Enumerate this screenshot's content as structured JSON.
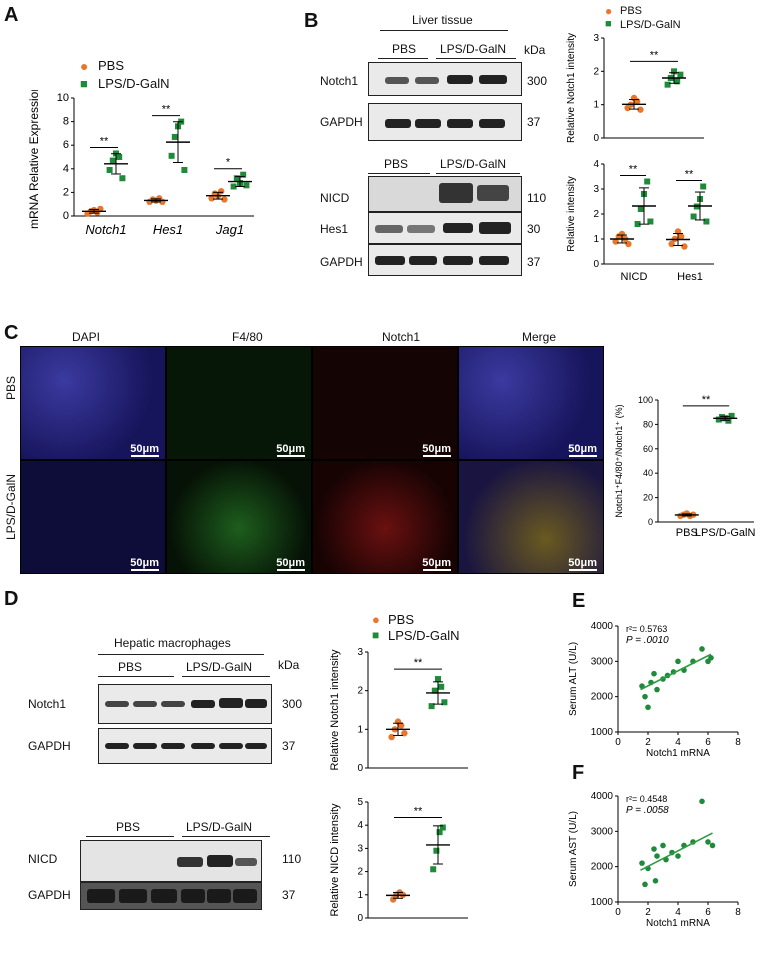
{
  "panels": {
    "a": "A",
    "b": "B",
    "c": "C",
    "d": "D",
    "e": "E",
    "f": "F"
  },
  "colors": {
    "pbs": "#e8772e",
    "lps": "#1f8a3a",
    "line": "#2f9a44"
  },
  "legend": {
    "pbs": "PBS",
    "lps": "LPS/D-GalN"
  },
  "sig": {
    "two": "**",
    "one": "*"
  },
  "blot_b": {
    "tissue": "Liver tissue",
    "kda": "kDa",
    "groups": [
      "PBS",
      "LPS/D-GalN"
    ],
    "rows_top": [
      {
        "name": "Notch1",
        "kda": "300"
      },
      {
        "name": "GAPDH",
        "kda": "37"
      }
    ],
    "rows_bottom": [
      {
        "name": "NICD",
        "kda": "110"
      },
      {
        "name": "Hes1",
        "kda": "30"
      },
      {
        "name": "GAPDH",
        "kda": "37"
      }
    ]
  },
  "micro": {
    "cols": [
      "DAPI",
      "F4/80",
      "Notch1",
      "Merge"
    ],
    "rows": [
      "PBS",
      "LPS/D-GalN"
    ],
    "scale": "50μm"
  },
  "blot_d": {
    "title": "Hepatic macrophages",
    "kda": "kDa",
    "groups": [
      "PBS",
      "LPS/D-GalN"
    ],
    "rows_top": [
      {
        "name": "Notch1",
        "kda": "300"
      },
      {
        "name": "GAPDH",
        "kda": "37"
      }
    ],
    "rows_bottom": [
      {
        "name": "NICD",
        "kda": "110"
      },
      {
        "name": "GAPDH",
        "kda": "37"
      }
    ]
  },
  "chart_data": [
    {
      "id": "A",
      "type": "scatter",
      "ylabel": "mRNA Relative Expression",
      "ylim": [
        0,
        10
      ],
      "yticks": [
        0,
        2,
        4,
        6,
        8,
        10
      ],
      "categories": [
        "Notch1",
        "Hes1",
        "Jag1"
      ],
      "series": [
        {
          "name": "PBS",
          "values": [
            [
              0.2,
              0.4,
              0.5,
              0.3,
              0.6
            ],
            [
              1.2,
              1.4,
              1.3,
              1.5,
              1.2
            ],
            [
              1.5,
              1.9,
              1.7,
              2.1,
              1.4
            ]
          ]
        },
        {
          "name": "LPS/D-GalN",
          "values": [
            [
              3.9,
              4.7,
              5.3,
              5.0,
              3.2
            ],
            [
              5.1,
              6.7,
              7.6,
              8.0,
              3.9
            ],
            [
              2.5,
              3.2,
              2.8,
              3.5,
              2.6
            ]
          ]
        }
      ],
      "sig": [
        "**",
        "**",
        "*"
      ]
    },
    {
      "id": "B1",
      "type": "scatter",
      "ylabel": "Relative Notch1 intensity",
      "ylim": [
        0,
        3
      ],
      "yticks": [
        0,
        1,
        2,
        3
      ],
      "categories": [
        "PBS",
        "LPS/D-GalN"
      ],
      "show_xticks": false,
      "values": [
        [
          0.9,
          1.0,
          1.2,
          1.1,
          0.85
        ],
        [
          1.6,
          1.8,
          2.0,
          1.7,
          1.9
        ]
      ],
      "sig": "**"
    },
    {
      "id": "B2",
      "type": "scatter",
      "ylabel": "Relative intensity",
      "ylim": [
        0,
        4
      ],
      "yticks": [
        0,
        1,
        2,
        3,
        4
      ],
      "categories": [
        "NICD",
        "Hes1"
      ],
      "series": [
        {
          "name": "PBS",
          "values": [
            [
              0.9,
              1.1,
              1.2,
              1.0,
              0.8
            ],
            [
              0.8,
              1.0,
              1.3,
              1.1,
              0.7
            ]
          ]
        },
        {
          "name": "LPS/D-GalN",
          "values": [
            [
              1.6,
              2.2,
              2.8,
              3.3,
              1.7
            ],
            [
              1.9,
              2.3,
              2.6,
              3.1,
              1.7
            ]
          ]
        }
      ],
      "sig": [
        "**",
        "**"
      ]
    },
    {
      "id": "C",
      "type": "scatter",
      "ylabel": "Notch1⁺F4/80⁺/Notch1⁺ (%)",
      "ylim": [
        0,
        100
      ],
      "yticks": [
        0,
        20,
        40,
        60,
        80,
        100
      ],
      "categories": [
        "PBS",
        "LPS/D-GalN"
      ],
      "values": [
        [
          5,
          6,
          7,
          5,
          6
        ],
        [
          84,
          86,
          85,
          83,
          87
        ]
      ],
      "sig": "**"
    },
    {
      "id": "D1",
      "type": "scatter",
      "ylabel": "Relative Notch1 intensity",
      "ylim": [
        0,
        3
      ],
      "yticks": [
        0,
        1,
        2,
        3
      ],
      "categories": [
        "PBS",
        "LPS/D-GalN"
      ],
      "show_xticks": false,
      "values": [
        [
          0.8,
          1.0,
          1.2,
          1.1,
          0.9
        ],
        [
          1.6,
          2.0,
          2.3,
          2.1,
          1.7
        ]
      ],
      "sig": "**"
    },
    {
      "id": "D2",
      "type": "scatter",
      "ylabel": "Relative NICD intensity",
      "ylim": [
        0,
        5
      ],
      "yticks": [
        0,
        1,
        2,
        3,
        4,
        5
      ],
      "categories": [
        "PBS",
        "LPS/D-GalN"
      ],
      "show_xticks": false,
      "values": [
        [
          0.8,
          1.0,
          1.1,
          1.0
        ],
        [
          2.1,
          2.9,
          3.7,
          3.9
        ]
      ],
      "sig": "**"
    },
    {
      "id": "E",
      "type": "scatter",
      "xlabel": "Notch1 mRNA",
      "ylabel": "Serum ALT (U/L)",
      "xlim": [
        0,
        8
      ],
      "ylim": [
        1000,
        4000
      ],
      "xticks": [
        0,
        2,
        4,
        6,
        8
      ],
      "yticks": [
        1000,
        2000,
        3000,
        4000
      ],
      "r2": "r²= 0.5763",
      "p": "P = .0010",
      "points": [
        [
          1.6,
          2300
        ],
        [
          1.8,
          2000
        ],
        [
          2.0,
          1700
        ],
        [
          2.2,
          2400
        ],
        [
          2.4,
          2650
        ],
        [
          2.6,
          2200
        ],
        [
          3.0,
          2500
        ],
        [
          3.3,
          2600
        ],
        [
          3.7,
          2700
        ],
        [
          4.0,
          3000
        ],
        [
          4.4,
          2750
        ],
        [
          5.0,
          3000
        ],
        [
          5.6,
          3350
        ],
        [
          6.0,
          3000
        ],
        [
          6.2,
          3100
        ]
      ],
      "fit": [
        [
          1.5,
          2200
        ],
        [
          6.2,
          3200
        ]
      ]
    },
    {
      "id": "F",
      "type": "scatter",
      "xlabel": "Notch1 mRNA",
      "ylabel": "Serum AST (U/L)",
      "xlim": [
        0,
        8
      ],
      "ylim": [
        1000,
        4000
      ],
      "xticks": [
        0,
        2,
        4,
        6,
        8
      ],
      "yticks": [
        1000,
        2000,
        3000,
        4000
      ],
      "r2": "r²= 0.4548",
      "p": "P = .0058",
      "points": [
        [
          1.6,
          2100
        ],
        [
          1.8,
          1500
        ],
        [
          2.0,
          1950
        ],
        [
          2.4,
          2500
        ],
        [
          2.5,
          1600
        ],
        [
          2.6,
          2300
        ],
        [
          3.0,
          2600
        ],
        [
          3.2,
          2200
        ],
        [
          3.6,
          2400
        ],
        [
          4.0,
          2300
        ],
        [
          4.4,
          2600
        ],
        [
          5.0,
          2700
        ],
        [
          5.6,
          3850
        ],
        [
          6.0,
          2700
        ],
        [
          6.3,
          2600
        ]
      ],
      "fit": [
        [
          1.5,
          1900
        ],
        [
          6.3,
          2950
        ]
      ]
    }
  ]
}
